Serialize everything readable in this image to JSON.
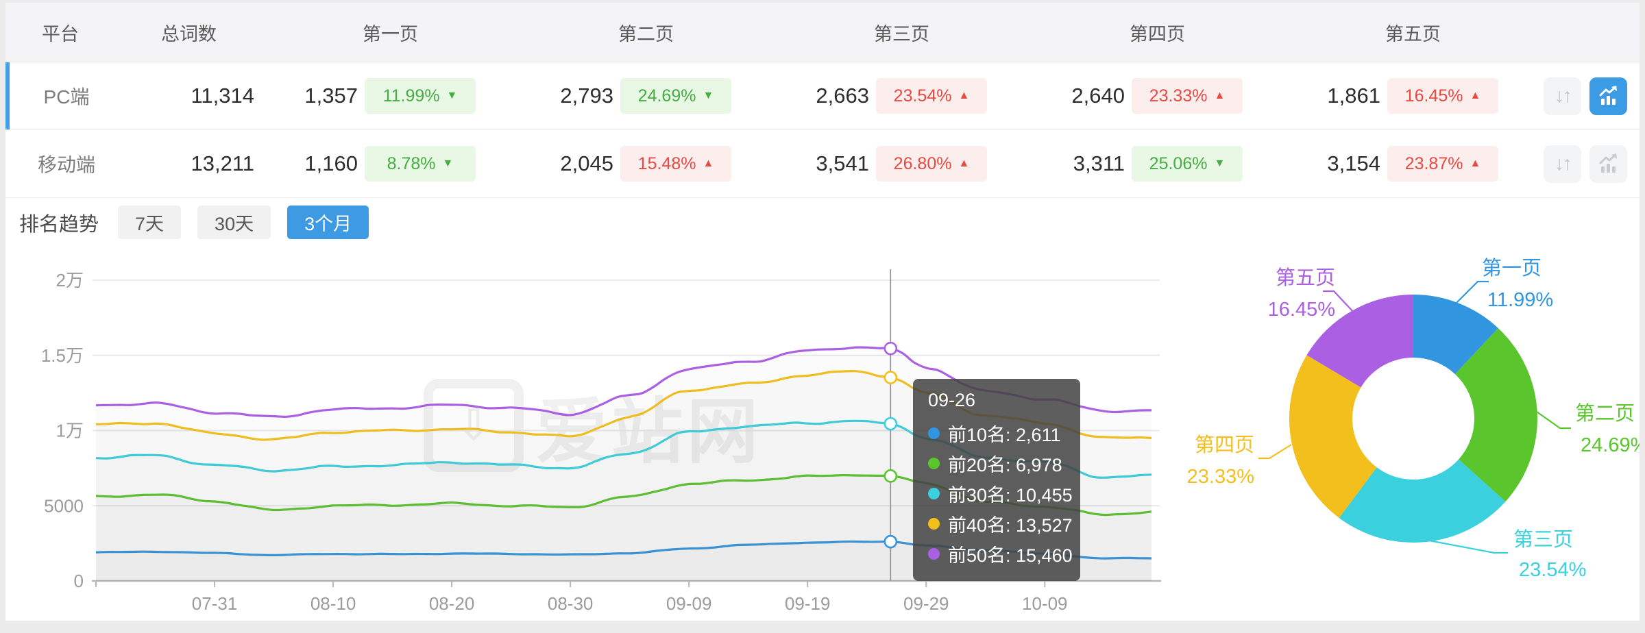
{
  "table": {
    "columns": [
      "平台",
      "总词数",
      "第一页",
      "第二页",
      "第三页",
      "第四页",
      "第五页"
    ],
    "rows": [
      {
        "platform": "PC端",
        "total": "11,314",
        "selected": true,
        "pages": [
          {
            "count": "1,357",
            "pct": "11.99%",
            "dir": "down",
            "tone": "good"
          },
          {
            "count": "2,793",
            "pct": "24.69%",
            "dir": "down",
            "tone": "good"
          },
          {
            "count": "2,663",
            "pct": "23.54%",
            "dir": "up",
            "tone": "bad"
          },
          {
            "count": "2,640",
            "pct": "23.33%",
            "dir": "up",
            "tone": "bad"
          },
          {
            "count": "1,861",
            "pct": "16.45%",
            "dir": "up",
            "tone": "bad"
          }
        ],
        "sort_button_active": false,
        "trend_button_active": true
      },
      {
        "platform": "移动端",
        "total": "13,211",
        "selected": false,
        "pages": [
          {
            "count": "1,160",
            "pct": "8.78%",
            "dir": "down",
            "tone": "good"
          },
          {
            "count": "2,045",
            "pct": "15.48%",
            "dir": "up",
            "tone": "bad"
          },
          {
            "count": "3,541",
            "pct": "26.80%",
            "dir": "up",
            "tone": "bad"
          },
          {
            "count": "3,311",
            "pct": "25.06%",
            "dir": "down",
            "tone": "good"
          },
          {
            "count": "3,154",
            "pct": "23.87%",
            "dir": "up",
            "tone": "bad"
          }
        ],
        "sort_button_active": false,
        "trend_button_active": false
      }
    ]
  },
  "trend": {
    "title": "排名趋势",
    "range_buttons": [
      {
        "label": "7天",
        "active": false
      },
      {
        "label": "30天",
        "active": false
      },
      {
        "label": "3个月",
        "active": true
      }
    ],
    "watermark": "爱站网"
  },
  "tooltip": {
    "date": "09-26",
    "rows": [
      {
        "label": "前10名",
        "value": "2,611"
      },
      {
        "label": "前20名",
        "value": "6,978"
      },
      {
        "label": "前30名",
        "value": "10,455"
      },
      {
        "label": "前40名",
        "value": "13,527"
      },
      {
        "label": "前50名",
        "value": "15,460"
      }
    ]
  },
  "colors": {
    "top10": "#3295e0",
    "top20": "#5ac52d",
    "top30": "#3bd0de",
    "top40": "#f3bf1c",
    "top50": "#ab5fe2",
    "accent_blue": "#3d9ae3",
    "badge_good_text": "#45ad41",
    "badge_bad_text": "#e74a41"
  },
  "chart_data": [
    {
      "type": "line",
      "title": "排名趋势 (3个月)",
      "x_start": "07-21",
      "x_end": "10-18",
      "total_days": 89,
      "x_tick_labels": [
        "07-31",
        "08-10",
        "08-20",
        "08-30",
        "09-09",
        "09-19",
        "09-29",
        "10-09"
      ],
      "x_tick_days": [
        10,
        20,
        30,
        40,
        50,
        60,
        70,
        80
      ],
      "y_tick_labels": [
        "0",
        "5000",
        "1万",
        "1.5万",
        "2万"
      ],
      "y_tick_values": [
        0,
        5000,
        10000,
        15000,
        20000
      ],
      "ylim": [
        0,
        20000
      ],
      "grid": true,
      "crosshair_day": 67,
      "crosshair_date": "09-26",
      "keypoint_days": [
        0,
        5,
        10,
        15,
        20,
        25,
        30,
        35,
        40,
        45,
        50,
        55,
        60,
        64,
        67,
        70,
        75,
        80,
        85,
        89
      ],
      "series": [
        {
          "name": "前10名",
          "color": "#3295e0",
          "crosshair_value": 2611,
          "values": [
            1900,
            1950,
            1850,
            1720,
            1800,
            1780,
            1820,
            1800,
            1750,
            1850,
            2150,
            2400,
            2550,
            2600,
            2611,
            2350,
            2050,
            1800,
            1500,
            1520
          ]
        },
        {
          "name": "前20名",
          "color": "#5ac52d",
          "crosshair_value": 6978,
          "values": [
            5600,
            5750,
            5300,
            4700,
            5000,
            5050,
            5150,
            5000,
            4900,
            5600,
            6450,
            6700,
            6950,
            7050,
            6978,
            6500,
            5250,
            4950,
            4400,
            4600
          ]
        },
        {
          "name": "前30名",
          "color": "#3bd0de",
          "crosshair_value": 10455,
          "values": [
            8200,
            8350,
            7700,
            7350,
            7600,
            7700,
            7900,
            7700,
            7500,
            8500,
            9900,
            10300,
            10500,
            10650,
            10455,
            9500,
            8200,
            7900,
            6900,
            7000
          ]
        },
        {
          "name": "前40名",
          "color": "#f3bf1c",
          "crosshair_value": 13527,
          "values": [
            10400,
            10500,
            9800,
            9400,
            9900,
            10000,
            10100,
            9900,
            9600,
            10900,
            12700,
            13100,
            13700,
            13950,
            13527,
            12500,
            11000,
            10500,
            9500,
            9550
          ]
        },
        {
          "name": "前50名",
          "color": "#ab5fe2",
          "crosshair_value": 15460,
          "values": [
            11700,
            11800,
            11200,
            10900,
            11400,
            11500,
            11700,
            11500,
            11100,
            12300,
            14100,
            14600,
            15300,
            15550,
            15460,
            14200,
            12600,
            12100,
            11300,
            11350
          ]
        }
      ]
    },
    {
      "type": "pie",
      "donut": true,
      "labels": [
        "第一页",
        "第二页",
        "第三页",
        "第四页",
        "第五页"
      ],
      "values": [
        11.99,
        24.69,
        23.54,
        23.33,
        16.45
      ],
      "value_labels": [
        "11.99%",
        "24.69%",
        "23.54%",
        "23.33%",
        "16.45%"
      ],
      "colors": [
        "#3295e0",
        "#5ac52d",
        "#3bd0de",
        "#f3bf1c",
        "#ab5fe2"
      ],
      "start_angle_deg": 0,
      "clockwise": true,
      "legend_position": "outside-labels"
    }
  ]
}
